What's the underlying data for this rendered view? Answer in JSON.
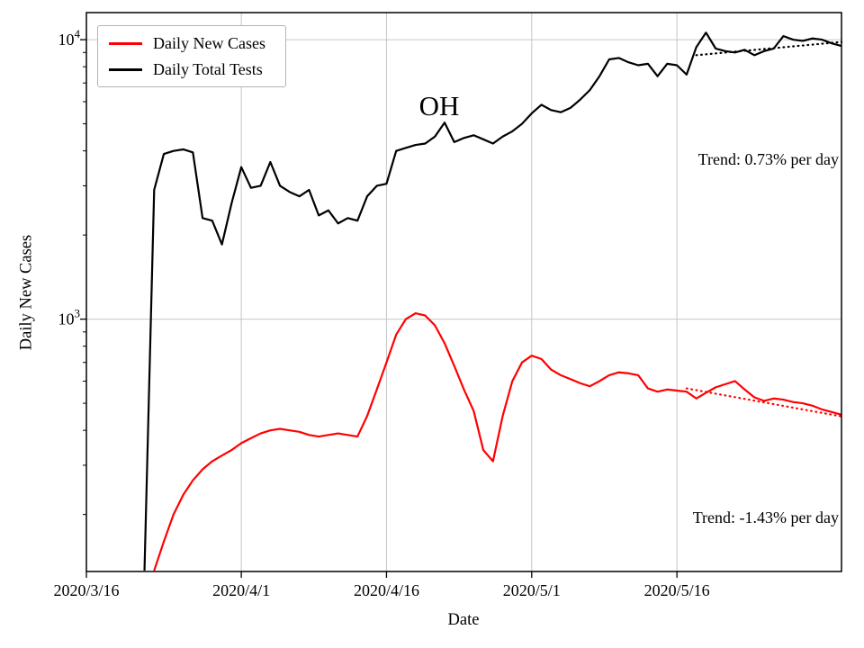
{
  "chart_data": {
    "type": "line",
    "title": "OH",
    "xlabel": "Date",
    "ylabel": "Daily New Cases",
    "y_scale": "log",
    "ylim": [
      125,
      12500
    ],
    "grid": true,
    "legend_position": "upper-left",
    "x_axis": {
      "start_date": "2020/3/16",
      "range_days": [
        0,
        78
      ],
      "ticks": [
        {
          "day": 0,
          "label": "2020/3/16"
        },
        {
          "day": 16,
          "label": "2020/4/1"
        },
        {
          "day": 31,
          "label": "2020/4/16"
        },
        {
          "day": 46,
          "label": "2020/5/1"
        },
        {
          "day": 61,
          "label": "2020/5/16"
        }
      ]
    },
    "y_axis": {
      "ticks": [
        {
          "value": 1000,
          "base": "10",
          "exp": "3"
        },
        {
          "value": 10000,
          "base": "10",
          "exp": "4"
        }
      ]
    },
    "series": [
      {
        "name": "Daily New Cases",
        "color": "#ff0000",
        "style": "solid",
        "start_day": 7,
        "start_date": "2020/3/23",
        "values": [
          126,
          160,
          200,
          235,
          265,
          290,
          310,
          325,
          340,
          360,
          375,
          390,
          400,
          405,
          400,
          395,
          385,
          380,
          385,
          390,
          385,
          380,
          450,
          560,
          700,
          880,
          1000,
          1050,
          1030,
          950,
          820,
          680,
          560,
          470,
          340,
          310,
          450,
          600,
          700,
          740,
          720,
          660,
          630,
          610,
          590,
          575,
          600,
          630,
          645,
          640,
          630,
          565,
          550,
          560,
          555,
          550,
          520,
          545,
          570,
          585,
          600,
          560,
          525,
          510,
          520,
          515,
          505,
          500,
          490,
          475,
          465,
          455
        ]
      },
      {
        "name": "Daily Total Tests",
        "color": "#000000",
        "style": "solid",
        "start_day": 6,
        "start_date": "2020/3/22",
        "values": [
          126,
          2900,
          3900,
          4000,
          4050,
          3950,
          2300,
          2250,
          1850,
          2600,
          3500,
          2950,
          3000,
          3650,
          3000,
          2850,
          2750,
          2900,
          2350,
          2450,
          2200,
          2300,
          2250,
          2750,
          3000,
          3050,
          4000,
          4100,
          4200,
          4250,
          4500,
          5050,
          4300,
          4450,
          4550,
          4400,
          4250,
          4500,
          4700,
          5000,
          5450,
          5850,
          5600,
          5500,
          5700,
          6100,
          6600,
          7400,
          8500,
          8600,
          8300,
          8100,
          8200,
          7400,
          8200,
          8100,
          7500,
          9400,
          10600,
          9300,
          9100,
          9000,
          9200,
          8800,
          9100,
          9300,
          10300,
          10000,
          9900,
          10100,
          10000,
          9700,
          9500
        ]
      }
    ],
    "trendlines": [
      {
        "for_series": "Daily Total Tests",
        "label": "Trend: 0.73% per day",
        "percent_per_day": 0.73,
        "color": "#000000",
        "style": "dotted",
        "start_day": 63,
        "end_day": 78,
        "start_value": 8800
      },
      {
        "for_series": "Daily New Cases",
        "label": "Trend: -1.43% per day",
        "percent_per_day": -1.43,
        "color": "#ff0000",
        "style": "dotted",
        "start_day": 62,
        "end_day": 78,
        "start_value": 565
      }
    ]
  }
}
